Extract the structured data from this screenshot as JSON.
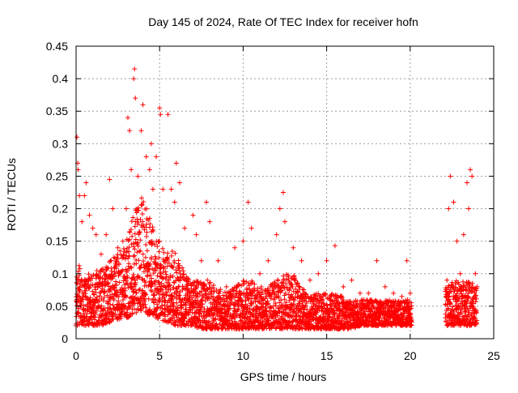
{
  "chart_data": {
    "type": "scatter",
    "title": "Day 145 of 2024, Rate Of TEC Index for receiver hofn",
    "xlabel": "GPS time / hours",
    "ylabel": "ROTI / TECUs",
    "xlim": [
      0,
      25
    ],
    "ylim": [
      0,
      0.45
    ],
    "xticks": [
      0,
      5,
      10,
      15,
      20,
      25
    ],
    "xtick_labels": [
      "0",
      "5",
      "10",
      "15",
      "20",
      "25"
    ],
    "yticks": [
      0,
      0.05,
      0.1,
      0.15,
      0.2,
      0.25,
      0.3,
      0.35,
      0.4,
      0.45
    ],
    "ytick_labels": [
      "0",
      "0.05",
      "0.1",
      "0.15",
      "0.2",
      "0.25",
      "0.3",
      "0.35",
      "0.4",
      "0.45"
    ],
    "grid": true,
    "marker": "+",
    "color": "#ff0000",
    "data_gap_hours": [
      20.1,
      22.1
    ],
    "series": [
      {
        "name": "ROTI",
        "points": [
          [
            0.05,
            0.31
          ],
          [
            0.1,
            0.27
          ],
          [
            0.12,
            0.26
          ],
          [
            0.2,
            0.22
          ],
          [
            0.35,
            0.18
          ],
          [
            0.5,
            0.22
          ],
          [
            0.6,
            0.24
          ],
          [
            0.8,
            0.19
          ],
          [
            1.0,
            0.17
          ],
          [
            1.2,
            0.16
          ],
          [
            1.5,
            0.13
          ],
          [
            1.8,
            0.16
          ],
          [
            2.0,
            0.245
          ],
          [
            2.2,
            0.2
          ],
          [
            2.5,
            0.14
          ],
          [
            2.8,
            0.15
          ],
          [
            3.0,
            0.2
          ],
          [
            3.1,
            0.34
          ],
          [
            3.2,
            0.32
          ],
          [
            3.3,
            0.26
          ],
          [
            3.45,
            0.4
          ],
          [
            3.5,
            0.415
          ],
          [
            3.55,
            0.37
          ],
          [
            3.7,
            0.25
          ],
          [
            3.9,
            0.32
          ],
          [
            4.0,
            0.36
          ],
          [
            4.2,
            0.28
          ],
          [
            4.4,
            0.26
          ],
          [
            4.5,
            0.3
          ],
          [
            4.6,
            0.23
          ],
          [
            4.8,
            0.28
          ],
          [
            5.0,
            0.355
          ],
          [
            5.05,
            0.345
          ],
          [
            5.2,
            0.23
          ],
          [
            5.5,
            0.345
          ],
          [
            5.7,
            0.23
          ],
          [
            5.9,
            0.21
          ],
          [
            6.0,
            0.27
          ],
          [
            6.2,
            0.24
          ],
          [
            6.5,
            0.17
          ],
          [
            7.0,
            0.19
          ],
          [
            7.2,
            0.16
          ],
          [
            7.5,
            0.12
          ],
          [
            7.8,
            0.21
          ],
          [
            8.0,
            0.18
          ],
          [
            8.5,
            0.12
          ],
          [
            9.0,
            0.08
          ],
          [
            9.5,
            0.14
          ],
          [
            10.0,
            0.15
          ],
          [
            10.3,
            0.21
          ],
          [
            10.5,
            0.17
          ],
          [
            11.0,
            0.1
          ],
          [
            11.5,
            0.12
          ],
          [
            12.0,
            0.16
          ],
          [
            12.2,
            0.2
          ],
          [
            12.4,
            0.225
          ],
          [
            12.5,
            0.18
          ],
          [
            13.0,
            0.14
          ],
          [
            13.5,
            0.12
          ],
          [
            14.0,
            0.09
          ],
          [
            14.5,
            0.1
          ],
          [
            15.0,
            0.12
          ],
          [
            15.5,
            0.143
          ],
          [
            16.0,
            0.08
          ],
          [
            16.5,
            0.09
          ],
          [
            17.0,
            0.07
          ],
          [
            17.5,
            0.07
          ],
          [
            18.0,
            0.12
          ],
          [
            18.5,
            0.08
          ],
          [
            19.0,
            0.07
          ],
          [
            19.5,
            0.065
          ],
          [
            19.8,
            0.12
          ],
          [
            20.0,
            0.07
          ],
          [
            22.2,
            0.09
          ],
          [
            22.3,
            0.2
          ],
          [
            22.4,
            0.25
          ],
          [
            22.6,
            0.21
          ],
          [
            22.8,
            0.15
          ],
          [
            23.0,
            0.1
          ],
          [
            23.2,
            0.16
          ],
          [
            23.4,
            0.24
          ],
          [
            23.5,
            0.2
          ],
          [
            23.6,
            0.26
          ],
          [
            23.7,
            0.25
          ],
          [
            23.9,
            0.1
          ],
          [
            24.0,
            0.08
          ]
        ]
      }
    ],
    "envelope": {
      "hours": [
        0,
        0.5,
        1,
        1.5,
        2,
        2.5,
        3,
        3.5,
        4,
        4.5,
        5,
        5.5,
        6,
        6.5,
        7,
        7.5,
        8,
        8.5,
        9,
        9.5,
        10,
        10.5,
        11,
        11.5,
        12,
        12.5,
        13,
        13.5,
        14,
        14.5,
        15,
        15.5,
        16,
        16.5,
        17,
        17.5,
        18,
        18.5,
        19,
        19.5,
        20.1,
        22.2,
        22.5,
        23,
        23.5,
        24.0
      ],
      "lower": [
        0.02,
        0.02,
        0.02,
        0.02,
        0.025,
        0.03,
        0.03,
        0.04,
        0.04,
        0.035,
        0.03,
        0.025,
        0.02,
        0.02,
        0.02,
        0.015,
        0.015,
        0.015,
        0.015,
        0.015,
        0.015,
        0.015,
        0.015,
        0.015,
        0.015,
        0.015,
        0.015,
        0.015,
        0.015,
        0.015,
        0.015,
        0.015,
        0.015,
        0.015,
        0.02,
        0.02,
        0.02,
        0.02,
        0.02,
        0.02,
        0.02,
        0.02,
        0.02,
        0.02,
        0.02,
        0.02
      ],
      "upper": [
        0.12,
        0.1,
        0.1,
        0.11,
        0.12,
        0.13,
        0.15,
        0.2,
        0.22,
        0.18,
        0.15,
        0.14,
        0.13,
        0.1,
        0.09,
        0.09,
        0.09,
        0.08,
        0.07,
        0.08,
        0.09,
        0.09,
        0.08,
        0.08,
        0.09,
        0.1,
        0.1,
        0.08,
        0.07,
        0.07,
        0.07,
        0.07,
        0.065,
        0.06,
        0.06,
        0.06,
        0.06,
        0.06,
        0.06,
        0.06,
        0.06,
        0.08,
        0.09,
        0.09,
        0.09,
        0.08
      ]
    }
  }
}
